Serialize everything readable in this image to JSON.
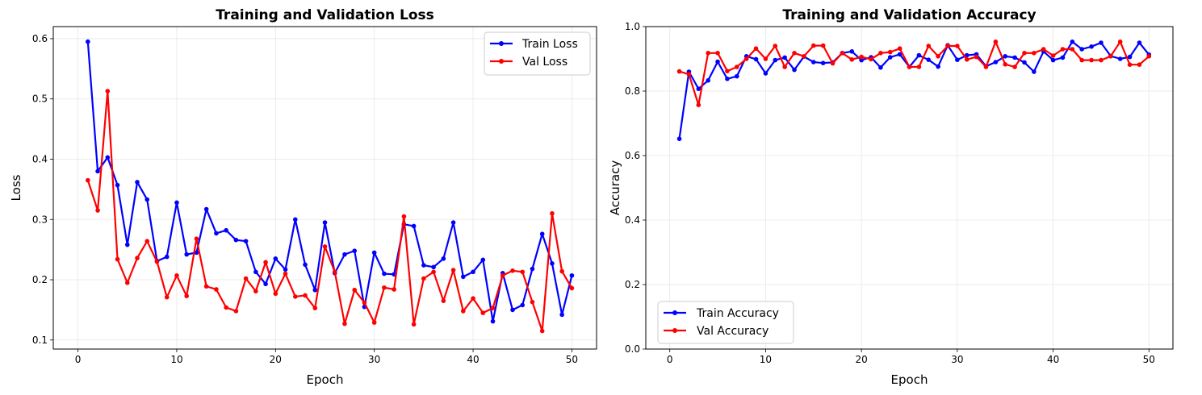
{
  "chart_data": [
    {
      "type": "line",
      "title": "Training and Validation Loss",
      "xlabel": "Epoch",
      "ylabel": "Loss",
      "xlim": [
        -2.5,
        52.5
      ],
      "ylim": [
        0.085,
        0.62
      ],
      "xticks": [
        0,
        10,
        20,
        30,
        40,
        50
      ],
      "yticks": [
        0.1,
        0.2,
        0.3,
        0.4,
        0.5,
        0.6
      ],
      "grid": true,
      "legend_position": "upper right",
      "x": [
        1,
        2,
        3,
        4,
        5,
        6,
        7,
        8,
        9,
        10,
        11,
        12,
        13,
        14,
        15,
        16,
        17,
        18,
        19,
        20,
        21,
        22,
        23,
        24,
        25,
        26,
        27,
        28,
        29,
        30,
        31,
        32,
        33,
        34,
        35,
        36,
        37,
        38,
        39,
        40,
        41,
        42,
        43,
        44,
        45,
        46,
        47,
        48,
        49,
        50
      ],
      "series": [
        {
          "name": "Train Loss",
          "color": "#0000ff",
          "values": [
            0.595,
            0.38,
            0.403,
            0.357,
            0.258,
            0.362,
            0.333,
            0.231,
            0.238,
            0.328,
            0.242,
            0.245,
            0.317,
            0.277,
            0.282,
            0.266,
            0.264,
            0.213,
            0.193,
            0.235,
            0.217,
            0.3,
            0.225,
            0.183,
            0.295,
            0.211,
            0.242,
            0.248,
            0.155,
            0.245,
            0.21,
            0.209,
            0.292,
            0.289,
            0.224,
            0.221,
            0.235,
            0.295,
            0.205,
            0.213,
            0.233,
            0.131,
            0.211,
            0.15,
            0.158,
            0.218,
            0.276,
            0.227,
            0.142,
            0.207
          ]
        },
        {
          "name": "Val Loss",
          "color": "#ff0000",
          "values": [
            0.365,
            0.315,
            0.513,
            0.234,
            0.195,
            0.236,
            0.264,
            0.23,
            0.171,
            0.207,
            0.173,
            0.268,
            0.189,
            0.184,
            0.154,
            0.148,
            0.202,
            0.181,
            0.229,
            0.177,
            0.21,
            0.172,
            0.174,
            0.153,
            0.255,
            0.213,
            0.127,
            0.183,
            0.162,
            0.129,
            0.187,
            0.184,
            0.305,
            0.126,
            0.202,
            0.213,
            0.165,
            0.216,
            0.148,
            0.169,
            0.145,
            0.153,
            0.207,
            0.215,
            0.213,
            0.163,
            0.115,
            0.31,
            0.214,
            0.186
          ]
        }
      ]
    },
    {
      "type": "line",
      "title": "Training and Validation Accuracy",
      "xlabel": "Epoch",
      "ylabel": "Accuracy",
      "xlim": [
        -2.5,
        52.5
      ],
      "ylim": [
        0.0,
        1.0
      ],
      "xticks": [
        0,
        10,
        20,
        30,
        40,
        50
      ],
      "yticks": [
        0.0,
        0.2,
        0.4,
        0.6,
        0.8,
        1.0
      ],
      "grid": true,
      "legend_position": "lower left",
      "x": [
        1,
        2,
        3,
        4,
        5,
        6,
        7,
        8,
        9,
        10,
        11,
        12,
        13,
        14,
        15,
        16,
        17,
        18,
        19,
        20,
        21,
        22,
        23,
        24,
        25,
        26,
        27,
        28,
        29,
        30,
        31,
        32,
        33,
        34,
        35,
        36,
        37,
        38,
        39,
        40,
        41,
        42,
        43,
        44,
        45,
        46,
        47,
        48,
        49,
        50
      ],
      "series": [
        {
          "name": "Train Accuracy",
          "color": "#0000ff",
          "values": [
            0.652,
            0.86,
            0.807,
            0.833,
            0.891,
            0.838,
            0.846,
            0.908,
            0.899,
            0.855,
            0.896,
            0.904,
            0.866,
            0.907,
            0.89,
            0.887,
            0.889,
            0.918,
            0.923,
            0.896,
            0.905,
            0.873,
            0.905,
            0.914,
            0.875,
            0.911,
            0.897,
            0.876,
            0.942,
            0.897,
            0.911,
            0.914,
            0.877,
            0.89,
            0.908,
            0.904,
            0.889,
            0.86,
            0.923,
            0.896,
            0.904,
            0.953,
            0.93,
            0.938,
            0.95,
            0.909,
            0.9,
            0.906,
            0.95,
            0.913
          ]
        },
        {
          "name": "Val Accuracy",
          "color": "#ff0000",
          "values": [
            0.861,
            0.852,
            0.757,
            0.918,
            0.918,
            0.862,
            0.875,
            0.9,
            0.932,
            0.9,
            0.94,
            0.875,
            0.918,
            0.908,
            0.941,
            0.941,
            0.886,
            0.918,
            0.898,
            0.906,
            0.899,
            0.918,
            0.921,
            0.932,
            0.875,
            0.875,
            0.94,
            0.908,
            0.94,
            0.94,
            0.898,
            0.906,
            0.875,
            0.953,
            0.883,
            0.875,
            0.918,
            0.918,
            0.93,
            0.91,
            0.93,
            0.93,
            0.896,
            0.896,
            0.896,
            0.908,
            0.953,
            0.882,
            0.882,
            0.908
          ]
        }
      ]
    }
  ]
}
